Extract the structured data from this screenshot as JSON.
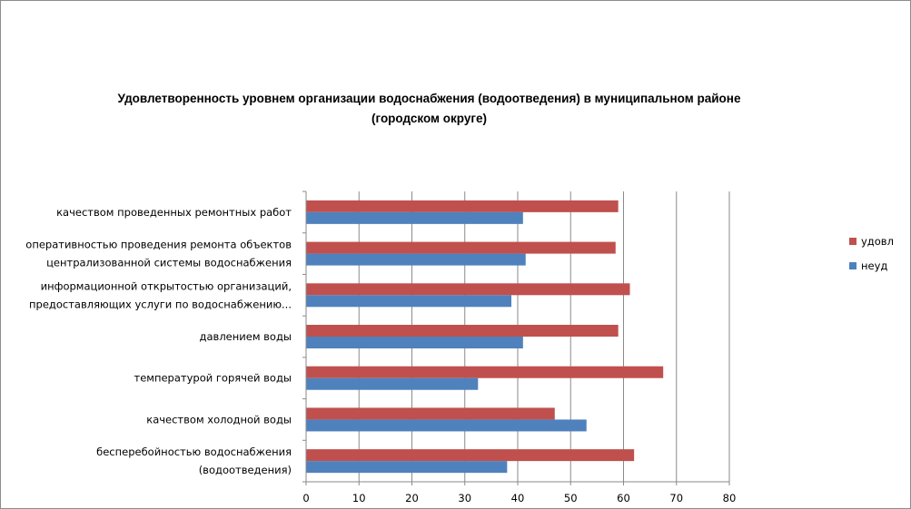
{
  "chart_data": {
    "type": "bar",
    "orientation": "horizontal",
    "title": "Удовлетворенность уровнем организации водоснабжения (водоотведения) в муниципальном районе (городском округе)",
    "categories": [
      [
        "бесперебойностью  водоснабжения",
        "(водоотведения)"
      ],
      [
        "качеством  холодной  воды"
      ],
      [
        "температурой  горячей  воды"
      ],
      [
        "давлением  воды"
      ],
      [
        "информационной  открытостью  организаций,",
        "предоставляющих  услуги  по  водоснабжению..."
      ],
      [
        "оперативностью  проведения  ремонта  объектов",
        "централизованной  системы  водоснабжения"
      ],
      [
        "качеством  проведенных  ремонтных  работ"
      ]
    ],
    "series": [
      {
        "name": "неуд",
        "color": "#4f81bd",
        "values": [
          38,
          53,
          32.5,
          41,
          38.8,
          41.5,
          41
        ]
      },
      {
        "name": "удовл",
        "color": "#c0504d",
        "values": [
          62,
          47,
          67.5,
          59,
          61.2,
          58.5,
          59
        ]
      }
    ],
    "xlim": [
      0,
      80
    ],
    "xticks": [
      "0",
      "10",
      "20",
      "30",
      "40",
      "50",
      "60",
      "70",
      "80"
    ],
    "grid": true,
    "legend_position": "right",
    "legend_order": [
      "удовл",
      "неуд"
    ]
  }
}
